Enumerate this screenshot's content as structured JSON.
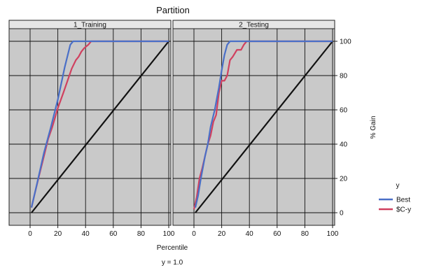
{
  "chart_data": {
    "type": "line",
    "title": "Partition",
    "footer": "y = 1.0",
    "xlabel": "Percentile",
    "ylabel": "% Gain",
    "xlim": [
      0,
      100
    ],
    "ylim": [
      0,
      100
    ],
    "x_ticks": [
      "0",
      "20",
      "40",
      "60",
      "80",
      "100"
    ],
    "y_ticks": [
      "0",
      "20",
      "40",
      "60",
      "80",
      "100"
    ],
    "legend": {
      "title": "y",
      "position": "right",
      "entries": [
        {
          "name": "Best",
          "color": "#4a6fc7"
        },
        {
          "name": "$C-y",
          "color": "#d0405f"
        }
      ]
    },
    "reference_line": {
      "color": "#111111",
      "points": [
        [
          1,
          0
        ],
        [
          100,
          100
        ]
      ]
    },
    "panels": [
      {
        "strip_label": "1_Training",
        "series": [
          {
            "name": "Best",
            "color": "#4a6fc7",
            "points": [
              [
                1,
                3
              ],
              [
                5,
                17
              ],
              [
                10,
                35
              ],
              [
                15,
                50
              ],
              [
                20,
                66
              ],
              [
                25,
                85
              ],
              [
                29,
                98
              ],
              [
                31,
                100
              ],
              [
                100,
                100
              ]
            ]
          },
          {
            "name": "$C-y",
            "color": "#d0405f",
            "points": [
              [
                1,
                3
              ],
              [
                3,
                10
              ],
              [
                6,
                20
              ],
              [
                10,
                33
              ],
              [
                13,
                43
              ],
              [
                16,
                50
              ],
              [
                20,
                61
              ],
              [
                24,
                70
              ],
              [
                27,
                77
              ],
              [
                30,
                84
              ],
              [
                33,
                89
              ],
              [
                35,
                91
              ],
              [
                37,
                94
              ],
              [
                39,
                96
              ],
              [
                42,
                98
              ],
              [
                44,
                100
              ],
              [
                100,
                100
              ]
            ]
          }
        ]
      },
      {
        "strip_label": "2_Testing",
        "series": [
          {
            "name": "Best",
            "color": "#4a6fc7",
            "points": [
              [
                1,
                3
              ],
              [
                3,
                10
              ],
              [
                5,
                20
              ],
              [
                8,
                33
              ],
              [
                10,
                40
              ],
              [
                12,
                50
              ],
              [
                15,
                60
              ],
              [
                18,
                73
              ],
              [
                20,
                83
              ],
              [
                22,
                92
              ],
              [
                24,
                98
              ],
              [
                26,
                100
              ],
              [
                100,
                100
              ]
            ]
          },
          {
            "name": "$C-y",
            "color": "#d0405f",
            "points": [
              [
                0,
                2
              ],
              [
                2,
                9
              ],
              [
                4,
                20
              ],
              [
                6,
                26
              ],
              [
                8,
                33
              ],
              [
                10,
                40
              ],
              [
                12,
                45
              ],
              [
                14,
                53
              ],
              [
                16,
                57
              ],
              [
                18,
                70
              ],
              [
                20,
                77
              ],
              [
                22,
                77
              ],
              [
                24,
                80
              ],
              [
                26,
                89
              ],
              [
                28,
                91
              ],
              [
                31,
                95
              ],
              [
                34,
                95
              ],
              [
                36,
                98
              ],
              [
                38,
                100
              ],
              [
                100,
                100
              ]
            ]
          }
        ]
      }
    ]
  }
}
